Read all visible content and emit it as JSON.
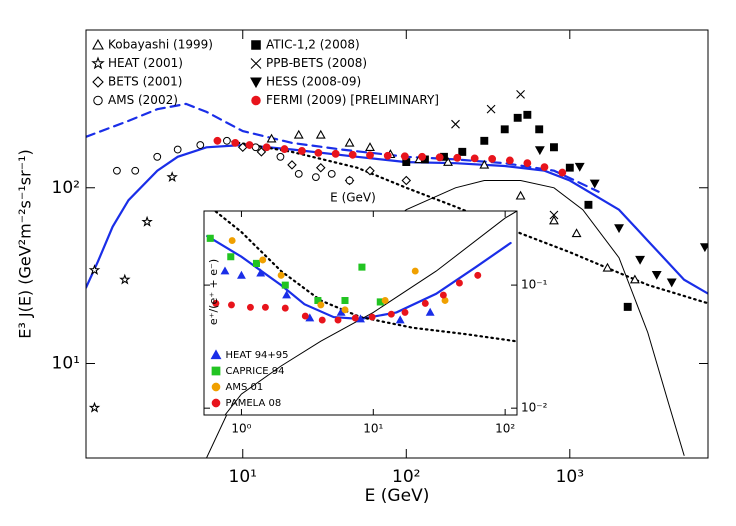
{
  "chart_data": [
    {
      "type": "scatter",
      "x_label": "E (GeV)",
      "y_label": "E³ J(E)  (GeV²m⁻²s⁻¹sr⁻¹)",
      "log_x": true,
      "log_y": true,
      "xlim": [
        1.1,
        7000
      ],
      "ylim": [
        2.9,
        790
      ],
      "xticks": [
        {
          "value": 10,
          "label": "10¹"
        },
        {
          "value": 100,
          "label": "10²"
        },
        {
          "value": 1000,
          "label": "10³"
        }
      ],
      "yticks": [
        {
          "value": 10,
          "label": "10¹"
        },
        {
          "value": 100,
          "label": "10²"
        }
      ],
      "y_axis_side": "left",
      "legend": "upper left",
      "series": [
        {
          "name": "Kobayashi (1999)",
          "color": "#000000",
          "marker": "triangle-open",
          "x": [
            15,
            22,
            30,
            45,
            60,
            80,
            120,
            180,
            300,
            500,
            800,
            1100,
            1700,
            2500
          ],
          "values": [
            190,
            200,
            200,
            180,
            170,
            155,
            145,
            140,
            135,
            90,
            65,
            55,
            35,
            30
          ]
        },
        {
          "name": "HEAT (2001)",
          "color": "#000000",
          "marker": "star-open",
          "x": [
            1.24,
            1.9,
            2.6,
            3.7,
            1.24
          ],
          "values": [
            34,
            30,
            64,
            115,
            5.6
          ]
        },
        {
          "name": "BETS (2001)",
          "color": "#000000",
          "marker": "diamond-open",
          "x": [
            10,
            13,
            20,
            30,
            45,
            60,
            100
          ],
          "values": [
            170,
            160,
            135,
            130,
            110,
            125,
            110
          ]
        },
        {
          "name": "AMS (2002)",
          "color": "#000000",
          "marker": "circle-open",
          "x": [
            1.7,
            2.2,
            3,
            4,
            5.5,
            8,
            12,
            17,
            22,
            28,
            35,
            45
          ],
          "values": [
            125,
            125,
            150,
            165,
            175,
            185,
            170,
            150,
            120,
            115,
            120,
            110
          ]
        },
        {
          "name": "ATIC-1,2 (2008)",
          "color": "#000000",
          "marker": "square",
          "x": [
            100,
            130,
            170,
            220,
            300,
            400,
            480,
            550,
            650,
            800,
            1000,
            1300,
            2260
          ],
          "values": [
            140,
            145,
            150,
            160,
            185,
            215,
            250,
            260,
            215,
            170,
            130,
            80,
            21
          ]
        },
        {
          "name": "PPB-BETS (2008)",
          "color": "#000000",
          "marker": "x",
          "x": [
            200,
            330,
            500,
            800
          ],
          "values": [
            230,
            280,
            340,
            70
          ]
        },
        {
          "name": "HESS (2008-09)",
          "color": "#000000",
          "marker": "triangle-down",
          "x": [
            656,
            1150,
            1420,
            2000,
            2690,
            3400,
            4200,
            6700
          ],
          "values": [
            164,
            132,
            106,
            59,
            39,
            32,
            29,
            46
          ]
        },
        {
          "name": "FERMI (2009) [PRELIMINARY]",
          "color": "#e8141c",
          "marker": "circle",
          "x": [
            7,
            9,
            11,
            14,
            18,
            23,
            29,
            37,
            47,
            60,
            77,
            98,
            125,
            160,
            205,
            262,
            335,
            430,
            550,
            700,
            900
          ],
          "values": [
            185,
            180,
            175,
            170,
            166,
            162,
            158,
            156,
            154,
            153,
            152,
            151,
            150,
            149,
            148,
            147,
            146,
            143,
            138,
            131,
            122
          ]
        }
      ],
      "curves": [
        {
          "color": "#1a2ee8",
          "style": "dashed",
          "x": [
            1.1,
            2,
            3,
            4.5,
            6,
            10,
            20,
            40,
            100,
            200,
            400,
            800,
            1500
          ],
          "values": [
            195,
            240,
            280,
            300,
            270,
            210,
            180,
            165,
            150,
            145,
            138,
            125,
            95
          ]
        },
        {
          "color": "#1a2ee8",
          "style": "solid",
          "x": [
            1.1,
            1.3,
            1.6,
            2,
            3,
            4,
            6,
            10,
            20,
            50,
            100,
            200,
            400,
            700,
            1000,
            2000,
            3000,
            5000,
            7000
          ],
          "values": [
            27,
            38,
            60,
            85,
            125,
            150,
            170,
            175,
            165,
            150,
            140,
            138,
            133,
            125,
            110,
            75,
            50,
            30,
            25
          ]
        },
        {
          "color": "#000000",
          "style": "dotted",
          "x": [
            8,
            20,
            50,
            100,
            200,
            500,
            1000,
            3000,
            7000
          ],
          "values": [
            185,
            160,
            130,
            100,
            78,
            55,
            43,
            28,
            22
          ]
        },
        {
          "color": "#000000",
          "style": "thin",
          "x": [
            6,
            10,
            20,
            50,
            100,
            200,
            300,
            500,
            800,
            1200,
            2000,
            3000,
            4000,
            5000
          ],
          "values": [
            2.9,
            8,
            20,
            45,
            75,
            100,
            110,
            110,
            100,
            75,
            40,
            15,
            6,
            3
          ]
        }
      ]
    },
    {
      "type": "scatter",
      "x_label": "E (GeV)",
      "y_label": "e⁺/(e⁺ + e⁻)",
      "log_x": true,
      "log_y": true,
      "xlim": [
        0.52,
        123
      ],
      "ylim": [
        0.0088,
        0.4
      ],
      "xticks": [
        {
          "value": 1,
          "label": "10⁰"
        },
        {
          "value": 10,
          "label": "10¹"
        },
        {
          "value": 100,
          "label": "10²"
        }
      ],
      "yticks": [
        {
          "value": 0.1,
          "label": "10⁻¹"
        },
        {
          "value": 0.01,
          "label": "10⁻²"
        }
      ],
      "y_axis_side": "right",
      "legend": "lower left",
      "series": [
        {
          "name": "HEAT 94+95",
          "color": "#1a2ee8",
          "marker": "triangle",
          "x": [
            0.75,
            1.0,
            1.4,
            2.2,
            3.3,
            5.7,
            8,
            16,
            27
          ],
          "values": [
            0.13,
            0.12,
            0.125,
            0.083,
            0.054,
            0.06,
            0.053,
            0.052,
            0.06
          ]
        },
        {
          "name": "CAPRICE 94",
          "color": "#22c422",
          "marker": "square",
          "x": [
            0.58,
            0.83,
            1.3,
            2.15,
            3.8,
            6.1,
            8.2,
            11.3
          ],
          "values": [
            0.24,
            0.17,
            0.15,
            0.1,
            0.075,
            0.075,
            0.14,
            0.073
          ]
        },
        {
          "name": "AMS 01",
          "color": "#f0a000",
          "marker": "circle",
          "x": [
            0.85,
            1.45,
            2.0,
            4.0,
            6.1,
            12.3,
            20.8,
            35
          ],
          "values": [
            0.23,
            0.16,
            0.12,
            0.069,
            0.063,
            0.075,
            0.13,
            0.075
          ]
        },
        {
          "name": "PAMELA 08",
          "color": "#e8141c",
          "marker": "circle",
          "x": [
            0.64,
            0.84,
            1.17,
            1.52,
            2.15,
            3.05,
            4.1,
            5.4,
            7.3,
            9.8,
            13.7,
            17.4,
            24.8,
            34,
            45,
            62
          ],
          "values": [
            0.071,
            0.069,
            0.066,
            0.066,
            0.065,
            0.056,
            0.052,
            0.052,
            0.054,
            0.055,
            0.058,
            0.06,
            0.071,
            0.083,
            0.104,
            0.12
          ]
        }
      ],
      "curves": [
        {
          "color": "#1a2ee8",
          "style": "solid",
          "x": [
            0.55,
            1,
            2,
            3,
            5,
            8,
            15,
            30,
            60,
            110
          ],
          "values": [
            0.25,
            0.17,
            0.1,
            0.07,
            0.055,
            0.053,
            0.06,
            0.085,
            0.14,
            0.22
          ]
        },
        {
          "color": "#000000",
          "style": "dotted",
          "x": [
            0.55,
            1,
            2,
            4,
            8,
            20,
            50,
            120
          ],
          "values": [
            0.45,
            0.27,
            0.13,
            0.075,
            0.055,
            0.045,
            0.04,
            0.035
          ]
        },
        {
          "color": "#000000",
          "style": "thin",
          "x": [
            0.75,
            1,
            2,
            4,
            10,
            30,
            100,
            123
          ],
          "values": [
            0.0088,
            0.013,
            0.022,
            0.035,
            0.06,
            0.13,
            0.35,
            0.4
          ]
        }
      ]
    }
  ]
}
